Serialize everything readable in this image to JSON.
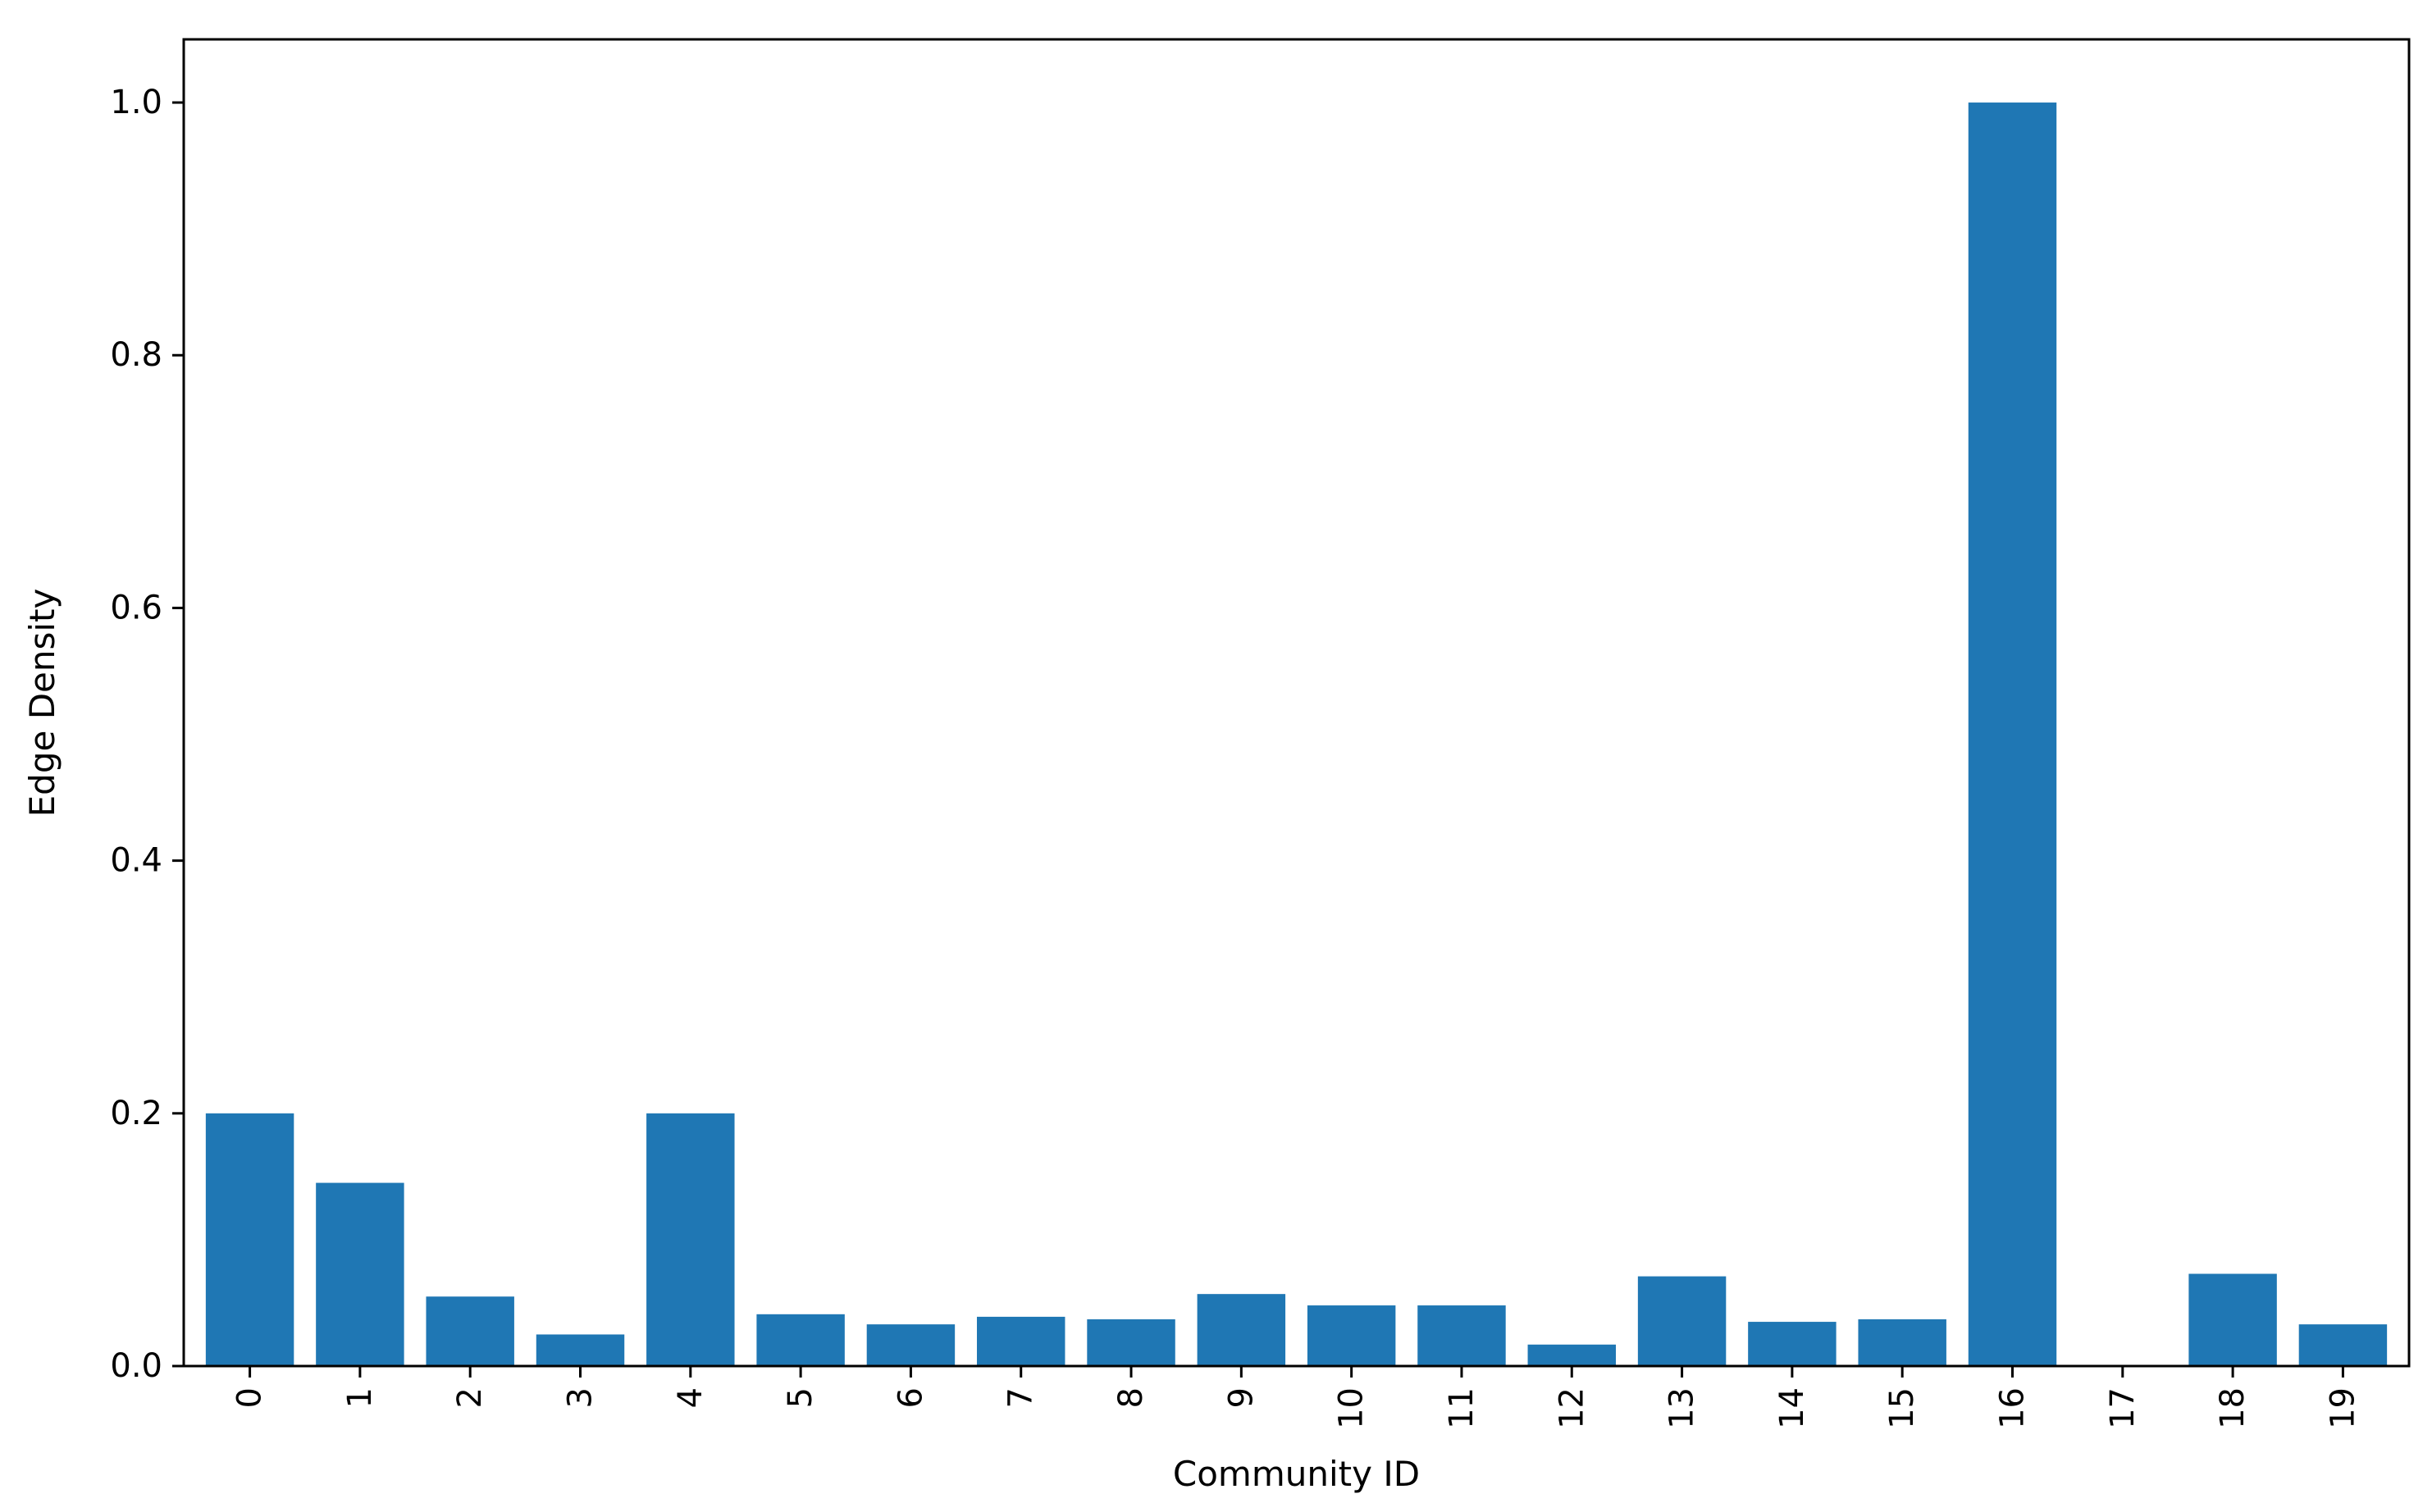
{
  "chart_data": {
    "type": "bar",
    "categories": [
      "0",
      "1",
      "2",
      "3",
      "4",
      "5",
      "6",
      "7",
      "8",
      "9",
      "10",
      "11",
      "12",
      "13",
      "14",
      "15",
      "16",
      "17",
      "18",
      "19"
    ],
    "values": [
      0.2,
      0.145,
      0.055,
      0.025,
      0.2,
      0.041,
      0.033,
      0.039,
      0.037,
      0.057,
      0.048,
      0.048,
      0.017,
      0.071,
      0.035,
      0.037,
      1.0,
      0.0,
      0.073,
      0.033
    ],
    "xlabel": "Community ID",
    "ylabel": "Edge Density",
    "ylim": [
      0,
      1.05
    ],
    "yticks": [
      0.0,
      0.2,
      0.4,
      0.6,
      0.8,
      1.0
    ],
    "ytick_labels": [
      "0.0",
      "0.2",
      "0.4",
      "0.6",
      "0.8",
      "1.0"
    ],
    "xtick_rotation": "vertical",
    "grid": false,
    "bar_color": "#1f77b4"
  }
}
